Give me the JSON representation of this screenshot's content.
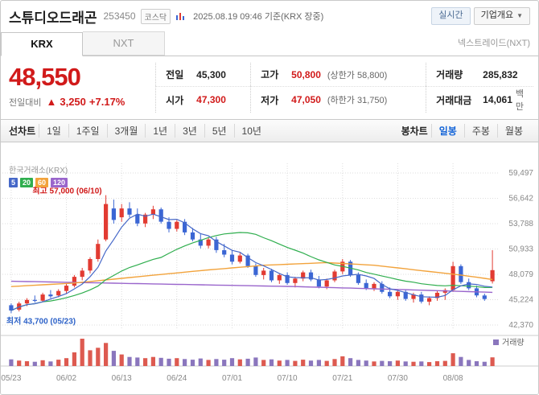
{
  "header": {
    "title": "스튜디오드래곤",
    "code": "253450",
    "market_badge": "코스닥",
    "datetime": "2025.08.19 09:46 기준(KRX 장중)",
    "realtime_button": "실시간",
    "overview_button": "기업개요",
    "overview_caret": "▼"
  },
  "tabs": {
    "krx": "KRX",
    "nxt": "NXT",
    "right_label": "넥스트레이드(NXT)"
  },
  "price": {
    "current": "48,550",
    "change_label": "전일대비",
    "change_arrow": "▲",
    "change_value": "3,250",
    "change_percent": "+7.17%"
  },
  "summary": {
    "prev_label": "전일",
    "prev_value": "45,300",
    "high_label": "고가",
    "high_value": "50,800",
    "high_limit": "(상한가 58,800)",
    "volume_label": "거래량",
    "volume_value": "285,832",
    "open_label": "시가",
    "open_value": "47,300",
    "low_label": "저가",
    "low_value": "47,050",
    "low_limit": "(하한가 31,750)",
    "amount_label": "거래대금",
    "amount_value": "14,061",
    "amount_unit": "백만"
  },
  "toolbar": {
    "line_group_label": "선차트",
    "periods": [
      "1일",
      "1주일",
      "3개월",
      "1년",
      "3년",
      "5년",
      "10년"
    ],
    "candle_group_label": "봉차트",
    "candle_modes": [
      "일봉",
      "주봉",
      "월봉"
    ],
    "active_mode": "일봉"
  },
  "chart_data": {
    "type": "candlestick",
    "exchange_label": "한국거래소(KRX)",
    "ma_legend": [
      {
        "label": "5",
        "color": "#4668c8"
      },
      {
        "label": "20",
        "color": "#2fae4e"
      },
      {
        "label": "60",
        "color": "#f2a33c"
      },
      {
        "label": "120",
        "color": "#9a66cc"
      }
    ],
    "up_color": "#e23b32",
    "down_color": "#3b66d4",
    "vol_up_color": "#dd5a50",
    "vol_down_color": "#8a76bd",
    "y_ticks": [
      "59,497",
      "56,642",
      "53,788",
      "50,933",
      "48,079",
      "45,224",
      "42,370"
    ],
    "y_tick_values": [
      59497,
      56642,
      53788,
      50933,
      48079,
      45224,
      42370
    ],
    "x_ticks": [
      [
        0,
        "05/23"
      ],
      [
        7,
        "06/02"
      ],
      [
        14,
        "06/13"
      ],
      [
        21,
        "06/24"
      ],
      [
        28,
        "07/01"
      ],
      [
        35,
        "07/10"
      ],
      [
        42,
        "07/21"
      ],
      [
        49,
        "07/30"
      ],
      [
        56,
        "08/08"
      ]
    ],
    "candles": [
      [
        44600,
        44800,
        43700,
        44000
      ],
      [
        44100,
        45000,
        43900,
        44800
      ],
      [
        44800,
        45400,
        44500,
        45200
      ],
      [
        45200,
        45700,
        44900,
        45100
      ],
      [
        45100,
        46000,
        45000,
        45800
      ],
      [
        45800,
        46300,
        45400,
        45600
      ],
      [
        45700,
        46400,
        45500,
        46200
      ],
      [
        46200,
        47000,
        45900,
        46800
      ],
      [
        46800,
        48000,
        46600,
        47800
      ],
      [
        47800,
        48800,
        47400,
        48500
      ],
      [
        48500,
        50000,
        48200,
        49800
      ],
      [
        49800,
        52000,
        49500,
        51500
      ],
      [
        52000,
        57000,
        51800,
        56000
      ],
      [
        55500,
        56500,
        53800,
        54200
      ],
      [
        54500,
        56000,
        54000,
        55500
      ],
      [
        55500,
        56200,
        54500,
        54800
      ],
      [
        54800,
        55500,
        53500,
        53800
      ],
      [
        53800,
        55000,
        53400,
        54800
      ],
      [
        54800,
        55800,
        54300,
        55400
      ],
      [
        55400,
        55600,
        53800,
        54000
      ],
      [
        54000,
        54500,
        52800,
        53200
      ],
      [
        53200,
        54200,
        52900,
        54000
      ],
      [
        54000,
        54300,
        52500,
        52800
      ],
      [
        52800,
        53300,
        51800,
        52000
      ],
      [
        52000,
        52600,
        51000,
        51300
      ],
      [
        51300,
        52200,
        51000,
        52000
      ],
      [
        52000,
        52300,
        50500,
        50800
      ],
      [
        50800,
        51500,
        50000,
        50300
      ],
      [
        50300,
        50800,
        49200,
        49500
      ],
      [
        49500,
        50500,
        49300,
        50200
      ],
      [
        50200,
        50400,
        48800,
        49000
      ],
      [
        49000,
        49300,
        47800,
        48000
      ],
      [
        48000,
        48800,
        47500,
        48500
      ],
      [
        48500,
        48700,
        47200,
        47400
      ],
      [
        47400,
        48200,
        47000,
        48000
      ],
      [
        48000,
        48300,
        46900,
        47100
      ],
      [
        47100,
        47800,
        46600,
        47600
      ],
      [
        47600,
        48500,
        47300,
        48300
      ],
      [
        48300,
        48600,
        47300,
        47500
      ],
      [
        47500,
        47900,
        46500,
        46700
      ],
      [
        46700,
        47600,
        46400,
        47400
      ],
      [
        47400,
        48600,
        47200,
        48400
      ],
      [
        48400,
        49800,
        48100,
        49500
      ],
      [
        49500,
        49700,
        47800,
        48000
      ],
      [
        48000,
        48300,
        46900,
        47100
      ],
      [
        47100,
        47500,
        46300,
        46500
      ],
      [
        46500,
        47200,
        46200,
        47000
      ],
      [
        47000,
        47300,
        45900,
        46100
      ],
      [
        46100,
        46600,
        45400,
        45600
      ],
      [
        45600,
        46300,
        45200,
        46100
      ],
      [
        46100,
        46400,
        45100,
        45300
      ],
      [
        45300,
        46000,
        44900,
        45800
      ],
      [
        45800,
        46100,
        44800,
        45000
      ],
      [
        45000,
        45600,
        44600,
        45400
      ],
      [
        45400,
        46200,
        45100,
        46000
      ],
      [
        46000,
        46500,
        45200,
        46300
      ],
      [
        46300,
        49500,
        46100,
        49000
      ],
      [
        49000,
        49200,
        47000,
        47200
      ],
      [
        47200,
        47600,
        46300,
        46500
      ],
      [
        46500,
        46800,
        45500,
        45700
      ],
      [
        45700,
        45900,
        45100,
        45300
      ],
      [
        47300,
        50800,
        47050,
        48550
      ]
    ],
    "volumes_k": [
      220,
      180,
      160,
      140,
      190,
      150,
      210,
      260,
      450,
      900,
      520,
      600,
      760,
      500,
      380,
      300,
      280,
      260,
      300,
      270,
      240,
      260,
      230,
      210,
      250,
      200,
      230,
      210,
      260,
      220,
      240,
      280,
      200,
      220,
      180,
      200,
      170,
      210,
      180,
      200,
      170,
      230,
      320,
      260,
      200,
      180,
      150,
      170,
      160,
      180,
      150,
      140,
      150,
      130,
      160,
      170,
      420,
      300,
      200,
      160,
      140,
      286
    ],
    "ma60_points": [
      [
        0,
        46700
      ],
      [
        8,
        47100
      ],
      [
        16,
        47800
      ],
      [
        24,
        48500
      ],
      [
        32,
        49100
      ],
      [
        40,
        49400
      ],
      [
        46,
        49100
      ],
      [
        52,
        48500
      ],
      [
        57,
        48000
      ],
      [
        61,
        47500
      ]
    ],
    "ma120_points": [
      [
        0,
        47300
      ],
      [
        12,
        47100
      ],
      [
        24,
        46900
      ],
      [
        36,
        46700
      ],
      [
        48,
        46400
      ],
      [
        61,
        46050
      ]
    ],
    "annotations": {
      "high": {
        "text": "최고 57,000 (06/10)",
        "index": 12,
        "value": 57000
      },
      "low": {
        "text": "최저 43,700 (05/23)",
        "index": 0,
        "value": 43700
      }
    },
    "volume_label": "거래량"
  }
}
